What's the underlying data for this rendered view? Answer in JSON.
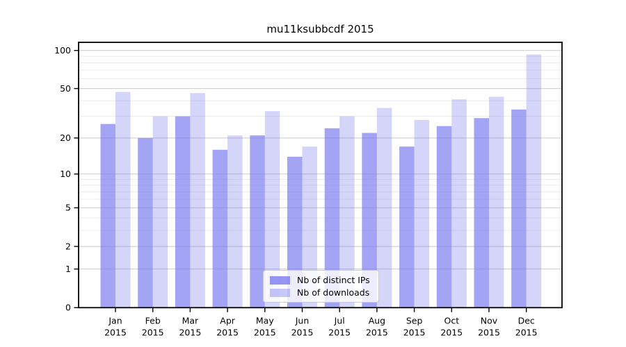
{
  "chart_data": {
    "type": "bar",
    "title": "mu11ksubbcdf 2015",
    "categories": [
      "Jan",
      "Feb",
      "Mar",
      "Apr",
      "May",
      "Jun",
      "Jul",
      "Aug",
      "Sep",
      "Oct",
      "Nov",
      "Dec"
    ],
    "year_label": "2015",
    "series": [
      {
        "name": "Nb of distinct IPs",
        "color": "#7373ee",
        "alpha": 0.65,
        "values": [
          26,
          20,
          30,
          16,
          21,
          14,
          24,
          22,
          17,
          25,
          29,
          34
        ]
      },
      {
        "name": "Nb of downloads",
        "color": "#7373ee",
        "alpha": 0.3,
        "values": [
          47,
          30,
          46,
          21,
          33,
          17,
          30,
          35,
          28,
          41,
          43,
          93
        ]
      }
    ],
    "yscale": "log10(value+1)",
    "y_major_ticks": [
      0,
      1,
      2,
      5,
      10,
      20,
      50,
      100
    ],
    "y_minor_ticks": [
      3,
      4,
      6,
      7,
      8,
      9,
      30,
      40,
      60,
      70,
      80,
      90
    ],
    "ylim": [
      0,
      116
    ],
    "grid": "on",
    "legend_position": "lower center",
    "colors": {
      "grid_major": "#c9c9c9",
      "grid_minor": "#ececec",
      "axis": "#000000",
      "text": "#000000",
      "legend_border": "#cccccc"
    }
  }
}
